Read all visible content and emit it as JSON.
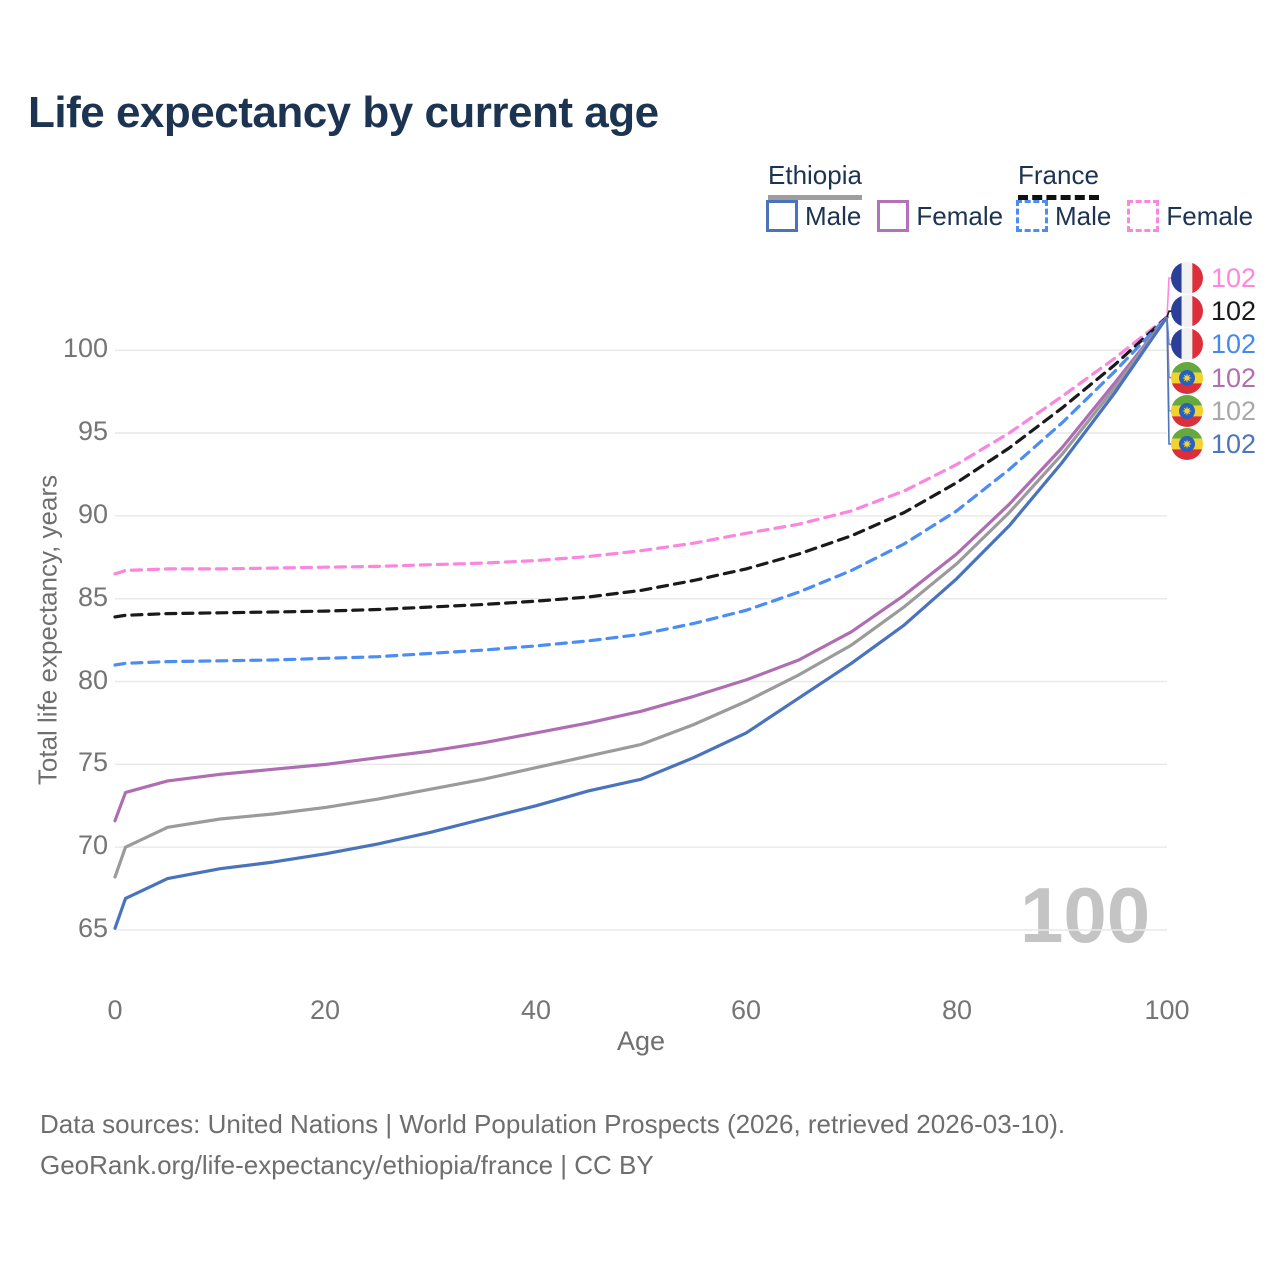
{
  "title": "Life expectancy by current age",
  "watermark": "100",
  "legend": {
    "groups": [
      {
        "label": "Ethiopia",
        "line_style": "solid",
        "underline_color": "#9e9e9e",
        "items": [
          {
            "label": "Male",
            "color": "#4a73bd"
          },
          {
            "label": "Female",
            "color": "#b273b8"
          }
        ]
      },
      {
        "label": "France",
        "line_style": "dashed",
        "underline_color": "#111111",
        "items": [
          {
            "label": "Male",
            "color": "#4b8df2"
          },
          {
            "label": "Female",
            "color": "#fb86de"
          }
        ]
      }
    ]
  },
  "axes": {
    "y_title": "Total life expectancy, years",
    "x_title": "Age",
    "y_ticks": [
      100,
      95,
      90,
      85,
      80,
      75,
      70,
      65
    ],
    "x_ticks": [
      0,
      20,
      40,
      60,
      80,
      100
    ]
  },
  "end_labels": [
    {
      "country": "France",
      "flag": "france-flag",
      "value": "102",
      "color": "#ff86dd"
    },
    {
      "country": "France",
      "flag": "france-flag",
      "value": "102",
      "color": "#1a1a1a"
    },
    {
      "country": "France",
      "flag": "france-flag",
      "value": "102",
      "color": "#4689ee"
    },
    {
      "country": "Ethiopia",
      "flag": "ethiopia-flag",
      "value": "102",
      "color": "#b06fb0"
    },
    {
      "country": "Ethiopia",
      "flag": "ethiopia-flag",
      "value": "102",
      "color": "#a9a9a9"
    },
    {
      "country": "Ethiopia",
      "flag": "ethiopia-flag",
      "value": "102",
      "color": "#4d76ba"
    }
  ],
  "footer": {
    "line1": "Data sources: United Nations | World Population Prospects (2026, retrieved 2026-03-10).",
    "line2": "GeoRank.org/life-expectancy/ethiopia/france | CC BY"
  },
  "chart_data": {
    "type": "line",
    "title": "Life expectancy by current age",
    "xlabel": "Age",
    "ylabel": "Total life expectancy, years",
    "xlim": [
      0,
      100
    ],
    "ylim": [
      63,
      103
    ],
    "x_ticks": [
      0,
      20,
      40,
      60,
      80,
      100
    ],
    "y_ticks": [
      65,
      70,
      75,
      80,
      85,
      90,
      95,
      100
    ],
    "grid": "horizontal",
    "legend_position": "top-right",
    "x": [
      0,
      1,
      5,
      10,
      15,
      20,
      25,
      30,
      35,
      40,
      45,
      50,
      55,
      60,
      65,
      70,
      75,
      80,
      85,
      90,
      95,
      100
    ],
    "series": [
      {
        "name": "France Female",
        "country": "France",
        "sex": "Female",
        "color": "#fb86de",
        "line_style": "dashed",
        "values": [
          86.5,
          86.7,
          86.8,
          86.8,
          86.85,
          86.9,
          86.95,
          87.05,
          87.15,
          87.3,
          87.55,
          87.9,
          88.35,
          88.95,
          89.5,
          90.3,
          91.5,
          93.1,
          95.0,
          97.2,
          99.5,
          102
        ]
      },
      {
        "name": "France Total",
        "country": "France",
        "sex": "Both",
        "color": "#1a1a1a",
        "line_style": "dashed",
        "values": [
          83.9,
          84.0,
          84.1,
          84.15,
          84.2,
          84.25,
          84.35,
          84.5,
          84.65,
          84.85,
          85.1,
          85.5,
          86.1,
          86.8,
          87.7,
          88.8,
          90.2,
          92.0,
          94.1,
          96.5,
          99.1,
          102
        ]
      },
      {
        "name": "France Male",
        "country": "France",
        "sex": "Male",
        "color": "#4b8df2",
        "line_style": "dashed",
        "values": [
          81.0,
          81.1,
          81.2,
          81.25,
          81.3,
          81.4,
          81.5,
          81.7,
          81.9,
          82.15,
          82.45,
          82.85,
          83.5,
          84.3,
          85.4,
          86.7,
          88.3,
          90.3,
          92.8,
          95.6,
          98.7,
          102
        ]
      },
      {
        "name": "Ethiopia Female",
        "country": "Ethiopia",
        "sex": "Female",
        "color": "#af6db3",
        "line_style": "solid",
        "values": [
          71.6,
          73.3,
          74.0,
          74.4,
          74.7,
          75.0,
          75.4,
          75.8,
          76.3,
          76.9,
          77.5,
          78.2,
          79.1,
          80.1,
          81.3,
          83.0,
          85.2,
          87.7,
          90.7,
          94.1,
          98.0,
          102
        ]
      },
      {
        "name": "Ethiopia Total",
        "country": "Ethiopia",
        "sex": "Both",
        "color": "#9b9b9b",
        "line_style": "solid",
        "values": [
          68.2,
          70.0,
          71.2,
          71.7,
          72.0,
          72.4,
          72.9,
          73.5,
          74.1,
          74.8,
          75.5,
          76.2,
          77.4,
          78.8,
          80.4,
          82.2,
          84.5,
          87.1,
          90.2,
          93.7,
          97.7,
          102
        ]
      },
      {
        "name": "Ethiopia Male",
        "country": "Ethiopia",
        "sex": "Male",
        "color": "#4a73bd",
        "line_style": "solid",
        "values": [
          65.1,
          66.9,
          68.1,
          68.7,
          69.1,
          69.6,
          70.2,
          70.9,
          71.7,
          72.5,
          73.4,
          74.1,
          75.4,
          76.9,
          79.0,
          81.1,
          83.4,
          86.2,
          89.4,
          93.2,
          97.4,
          102
        ]
      }
    ]
  }
}
